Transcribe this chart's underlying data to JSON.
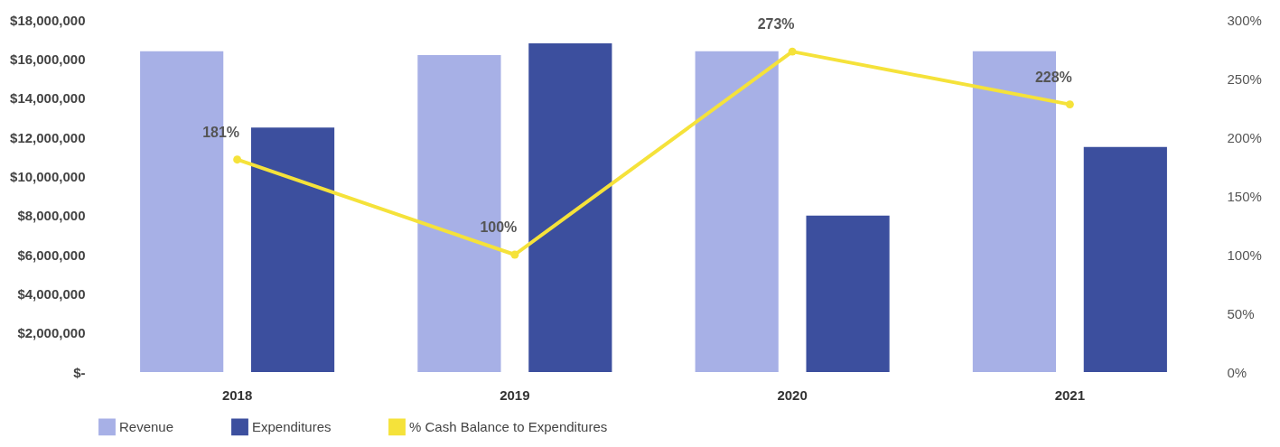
{
  "chart_data": {
    "type": "bar",
    "categories": [
      "2018",
      "2019",
      "2020",
      "2021"
    ],
    "series": [
      {
        "name": "Revenue",
        "color": "#a7b0e6",
        "values": [
          16400000,
          16200000,
          16400000,
          16400000
        ]
      },
      {
        "name": "Expenditures",
        "color": "#3c4f9e",
        "values": [
          12500000,
          16800000,
          8000000,
          11500000
        ]
      },
      {
        "name": "% Cash Balance to Expenditures",
        "type": "line",
        "axis": "y2",
        "color": "#f5e23a",
        "values": [
          181,
          100,
          273,
          228
        ],
        "value_labels": [
          "181%",
          "100%",
          "273%",
          "228%"
        ]
      }
    ],
    "ylim": [
      0,
      18000000
    ],
    "yticks": [
      {
        "value": 0,
        "label": "$-"
      },
      {
        "value": 2000000,
        "label": "$2,000,000"
      },
      {
        "value": 4000000,
        "label": "$4,000,000"
      },
      {
        "value": 6000000,
        "label": "$6,000,000"
      },
      {
        "value": 8000000,
        "label": "$8,000,000"
      },
      {
        "value": 10000000,
        "label": "$10,000,000"
      },
      {
        "value": 12000000,
        "label": "$12,000,000"
      },
      {
        "value": 14000000,
        "label": "$14,000,000"
      },
      {
        "value": 16000000,
        "label": "$16,000,000"
      },
      {
        "value": 18000000,
        "label": "$18,000,000"
      }
    ],
    "y2lim": [
      0,
      300
    ],
    "y2ticks": [
      {
        "value": 0,
        "label": "0%"
      },
      {
        "value": 50,
        "label": "50%"
      },
      {
        "value": 100,
        "label": "100%"
      },
      {
        "value": 150,
        "label": "150%"
      },
      {
        "value": 200,
        "label": "200%"
      },
      {
        "value": 250,
        "label": "250%"
      },
      {
        "value": 300,
        "label": "300%"
      }
    ],
    "legend": "bottom",
    "marker": "circle",
    "grid": false
  }
}
